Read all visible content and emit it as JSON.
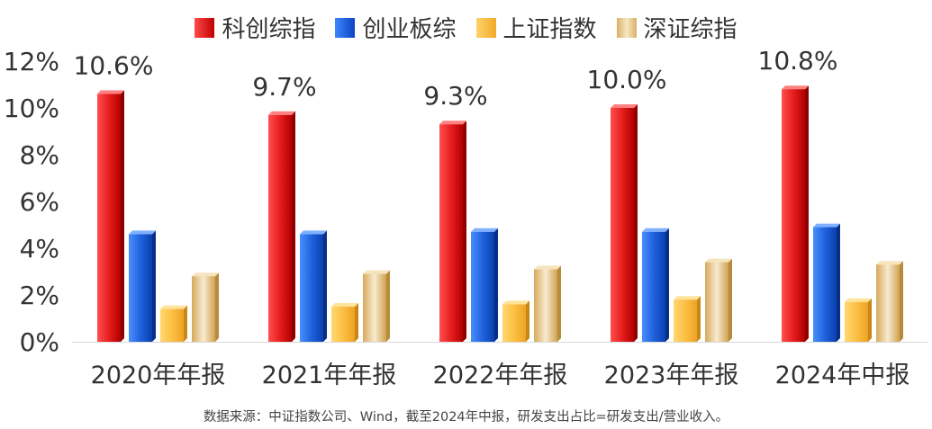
{
  "chart_data": {
    "type": "bar",
    "categories": [
      "2020年年报",
      "2021年年报",
      "2022年年报",
      "2023年年报",
      "2024年中报"
    ],
    "series": [
      {
        "name": "科创综指",
        "values": [
          10.6,
          9.7,
          9.3,
          10.0,
          10.8
        ],
        "color": "#d9181c"
      },
      {
        "name": "创业板综",
        "values": [
          4.6,
          4.6,
          4.7,
          4.7,
          4.9
        ],
        "color": "#1f5fd6"
      },
      {
        "name": "上证指数",
        "values": [
          1.4,
          1.5,
          1.6,
          1.8,
          1.7
        ],
        "color": "#f4b93b"
      },
      {
        "name": "深证综指",
        "values": [
          2.8,
          2.9,
          3.1,
          3.4,
          3.3
        ],
        "color": "#e3c283"
      }
    ],
    "data_labels": [
      "10.6%",
      "9.7%",
      "9.3%",
      "10.0%",
      "10.8%"
    ],
    "y_ticks": [
      "0%",
      "2%",
      "4%",
      "6%",
      "8%",
      "10%",
      "12%"
    ],
    "ylim": [
      0,
      12
    ],
    "legend_position": "top-center",
    "grid": false
  },
  "source_note": "数据来源：中证指数公司、Wind，截至2024年中报，研发支出占比=研发支出/营业收入。"
}
